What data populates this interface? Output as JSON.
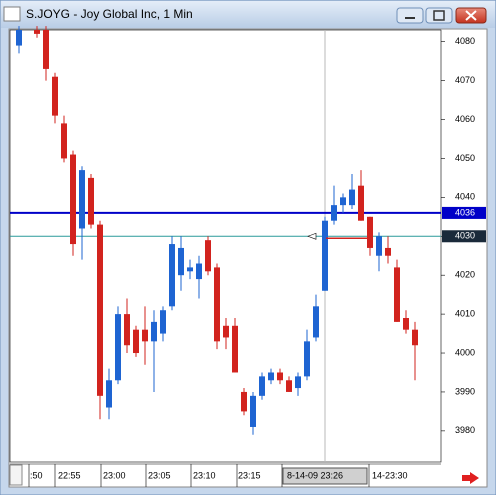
{
  "window_title": "S.JOYG - Joy Global Inc, 1 Min",
  "chart_data": {
    "type": "candlestick",
    "up_color": "#1e64d2",
    "down_color": "#d2231e",
    "ylim": [
      3972,
      4083
    ],
    "yticks": [
      3980,
      3990,
      4000,
      4010,
      4020,
      4030,
      4040,
      4050,
      4060,
      4070,
      4080
    ],
    "x_labels": [
      ":50",
      "22:55",
      "23:00",
      "23:05",
      "23:10",
      "23:15",
      "14-23:30"
    ],
    "crosshair_label": "8-14-09 23:26",
    "crosshair_index": 34,
    "hlines": [
      {
        "value": 4036,
        "color": "#0000c8"
      },
      {
        "value": 4030,
        "color": "#2a9a9a"
      }
    ],
    "open": [
      4079,
      null,
      4083,
      4083,
      4071,
      4059,
      4051,
      4032,
      4045,
      4033,
      3986,
      3993,
      4010,
      4006,
      4006,
      4003,
      4005,
      4012,
      4020,
      4021,
      4019,
      4029,
      4022,
      4007,
      4007,
      3990,
      3981,
      3989,
      3993,
      3995,
      3993,
      3991,
      3994,
      4004,
      4016,
      4034,
      4038,
      4038,
      4043,
      4035,
      4025,
      4027,
      4022,
      4009,
      4006
    ],
    "high": [
      4084,
      null,
      4084,
      4084,
      4072,
      4061,
      4052,
      4048,
      4046,
      4034,
      3996,
      4012,
      4014,
      4007,
      4012,
      4011,
      4012,
      4030,
      4030,
      4024,
      4025,
      4030,
      4023,
      4009,
      4009,
      3991,
      3990,
      3995,
      3996,
      3996,
      3994,
      3995,
      4006,
      4015,
      4035,
      4043,
      4041,
      4046,
      4047,
      4035,
      4031,
      4030,
      4024,
      4011,
      4008
    ],
    "low": [
      4077,
      null,
      4081,
      4070,
      4059,
      4049,
      4025,
      4024,
      4032,
      3983,
      3983,
      3992,
      4000,
      3999,
      3997,
      3990,
      4003,
      4011,
      4016,
      4019,
      4014,
      4020,
      4001,
      4001,
      3995,
      3984,
      3979,
      3988,
      3992,
      3992,
      3990,
      3989,
      3993,
      4003,
      4016,
      4033,
      4036,
      4037,
      4034,
      4025,
      4021,
      4023,
      4008,
      4005,
      3993
    ],
    "close": [
      4083,
      null,
      4082,
      4073,
      4061,
      4050,
      4028,
      4047,
      4033,
      3989,
      3993,
      4010,
      4002,
      4000,
      4003,
      4008,
      4011,
      4028,
      4027,
      4022,
      4023,
      4021,
      4003,
      4004,
      3995,
      3985,
      3989,
      3994,
      3995,
      3993,
      3990,
      3994,
      4003,
      4012,
      4034,
      4038,
      4040,
      4042,
      4034,
      4027,
      4030,
      4025,
      4008,
      4006,
      4002
    ]
  }
}
